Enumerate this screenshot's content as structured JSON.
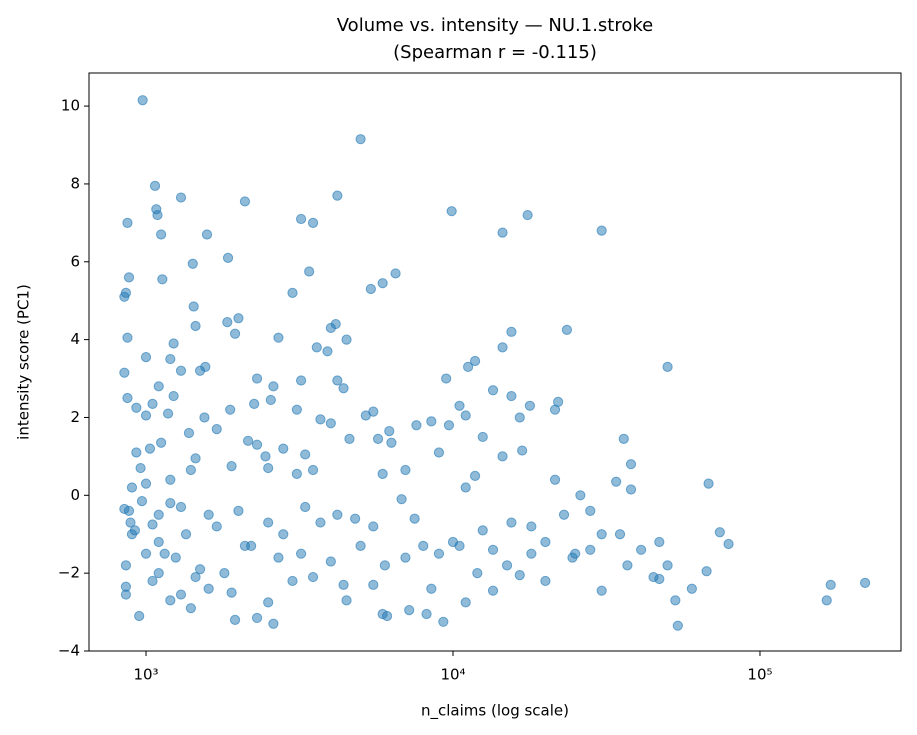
{
  "chart_data": {
    "type": "scatter",
    "title": "Volume vs. intensity — NU.1.stroke",
    "subtitle": "(Spearman r = -0.115)",
    "x_label": "n_claims (log scale)",
    "y_label": "intensity score (PC1)",
    "xscale": "log",
    "color": "#1f77b4",
    "grid": false,
    "xlim": [
      652,
      288000
    ],
    "ylim": [
      -4,
      10.85
    ],
    "xticks": [
      {
        "value": 1000,
        "label": "10³"
      },
      {
        "value": 10000,
        "label": "10⁴"
      },
      {
        "value": 100000,
        "label": "10⁵"
      }
    ],
    "yticks": [
      {
        "value": -4,
        "label": "−4"
      },
      {
        "value": -2,
        "label": "−2"
      },
      0,
      2,
      4,
      6,
      8,
      10
    ],
    "x": [
      975,
      5000,
      1070,
      1080,
      1090,
      870,
      1300,
      2100,
      4200,
      3200,
      3500,
      9900,
      17500,
      14500,
      30500,
      1120,
      1580,
      1420,
      1850,
      880,
      1130,
      860,
      850,
      3400,
      3000,
      5400,
      5900,
      6500,
      870,
      1430,
      1450,
      1840,
      2000,
      1950,
      2700,
      4000,
      4150,
      4500,
      3600,
      15500,
      14500,
      23500,
      50000,
      850,
      1000,
      1200,
      1500,
      1560,
      1230,
      2300,
      2600,
      3200,
      4200,
      4400,
      3900,
      9500,
      11800,
      11200,
      13500,
      15500,
      17800,
      21500,
      22000,
      870,
      930,
      1050,
      1100,
      1230,
      1300,
      1180,
      1550,
      1880,
      2250,
      2550,
      3100,
      3700,
      5200,
      5500,
      6200,
      7600,
      9700,
      10500,
      11000,
      16500,
      21500,
      26000,
      36000,
      38000,
      34000,
      38000,
      8500,
      9000,
      12500,
      14500,
      16800,
      1000,
      1030,
      1120,
      1380,
      1700,
      2150,
      2300,
      2800,
      3300,
      4000,
      4600,
      5700,
      6300,
      930,
      960,
      1000,
      900,
      1200,
      1400,
      1450,
      1900,
      2450,
      2500,
      3100,
      3500,
      5900,
      7000,
      11000,
      11800,
      880,
      850,
      890,
      920,
      970,
      1050,
      1100,
      1150,
      1200,
      1300,
      1350,
      1600,
      1700,
      2000,
      2200,
      2500,
      2800,
      3300,
      3700,
      4200,
      4800,
      5500,
      6800,
      7500,
      9000,
      10500,
      12500,
      13500,
      15500,
      18000,
      20000,
      23000,
      28000,
      30500,
      35000,
      41000,
      47000,
      50000,
      53000,
      54000,
      60000,
      67000,
      68000,
      74000,
      79000,
      165000,
      170000,
      220000,
      860,
      860,
      860,
      950,
      1050,
      1100,
      1200,
      1300,
      1400,
      1450,
      1600,
      1900,
      1950,
      2300,
      2500,
      2600,
      3000,
      3500,
      4400,
      4500,
      5500,
      5900,
      6100,
      7200,
      8200,
      8500,
      9300,
      11000,
      13500,
      16500,
      20000,
      24500,
      30500,
      45000,
      47000,
      900,
      1000,
      1100,
      1250,
      1500,
      1800,
      2100,
      2700,
      3200,
      4000,
      5000,
      6000,
      7000,
      8000,
      10000,
      12000,
      15000,
      18000,
      25000,
      37000,
      28000
    ],
    "y": [
      10.15,
      9.15,
      7.95,
      7.35,
      7.2,
      7.0,
      7.65,
      7.55,
      7.7,
      7.1,
      7.0,
      7.3,
      7.2,
      6.75,
      6.8,
      6.7,
      6.7,
      5.95,
      6.1,
      5.6,
      5.55,
      5.2,
      5.1,
      5.75,
      5.2,
      5.3,
      5.45,
      5.7,
      4.05,
      4.85,
      4.35,
      4.45,
      4.55,
      4.15,
      4.05,
      4.3,
      4.4,
      4.0,
      3.8,
      4.2,
      3.8,
      4.25,
      3.3,
      3.15,
      3.55,
      3.5,
      3.2,
      3.3,
      3.9,
      3.0,
      2.8,
      2.95,
      2.95,
      2.75,
      3.7,
      3.0,
      3.45,
      3.3,
      2.7,
      2.55,
      2.3,
      2.2,
      2.4,
      2.5,
      2.25,
      2.35,
      2.8,
      2.55,
      3.2,
      2.1,
      2.0,
      2.2,
      2.35,
      2.45,
      2.2,
      1.95,
      2.05,
      2.15,
      1.65,
      1.8,
      1.8,
      2.3,
      2.05,
      2.0,
      0.4,
      0.0,
      1.45,
      0.8,
      0.35,
      0.15,
      1.9,
      1.1,
      1.5,
      1.0,
      1.15,
      2.05,
      1.2,
      1.35,
      1.6,
      1.7,
      1.4,
      1.3,
      1.2,
      1.05,
      1.85,
      1.45,
      1.45,
      1.35,
      1.1,
      0.7,
      0.3,
      0.2,
      0.4,
      0.65,
      0.95,
      0.75,
      1.0,
      0.7,
      0.55,
      0.65,
      0.55,
      0.65,
      0.2,
      0.5,
      -0.4,
      -0.35,
      -0.7,
      -0.9,
      -0.15,
      -0.75,
      -0.5,
      -1.5,
      -0.2,
      -0.3,
      -1.0,
      -0.5,
      -0.8,
      -0.4,
      -1.3,
      -0.7,
      -1.0,
      -0.3,
      -0.7,
      -0.5,
      -0.6,
      -0.8,
      -0.1,
      -0.6,
      -1.5,
      -1.3,
      -0.9,
      -1.4,
      -0.7,
      -0.8,
      -1.2,
      -0.5,
      -0.4,
      -1.0,
      -1.0,
      -1.4,
      -1.2,
      -1.8,
      -2.7,
      -3.35,
      -2.4,
      -1.95,
      0.3,
      -0.95,
      -1.25,
      -2.7,
      -2.3,
      -2.25,
      -1.8,
      -2.55,
      -2.35,
      -3.1,
      -2.2,
      -2.0,
      -2.7,
      -2.55,
      -2.9,
      -2.1,
      -2.4,
      -2.5,
      -3.2,
      -3.15,
      -2.75,
      -3.3,
      -2.2,
      -2.1,
      -2.3,
      -2.7,
      -2.3,
      -3.05,
      -3.1,
      -2.95,
      -3.05,
      -2.4,
      -3.25,
      -2.75,
      -2.45,
      -2.05,
      -2.2,
      -1.6,
      -2.45,
      -2.1,
      -2.15,
      -1.0,
      -1.5,
      -1.2,
      -1.6,
      -1.9,
      -2.0,
      -1.3,
      -1.6,
      -1.5,
      -1.7,
      -1.3,
      -1.8,
      -1.6,
      -1.3,
      -1.2,
      -2.0,
      -1.8,
      -1.5,
      -1.5,
      -1.8,
      -1.4
    ]
  }
}
